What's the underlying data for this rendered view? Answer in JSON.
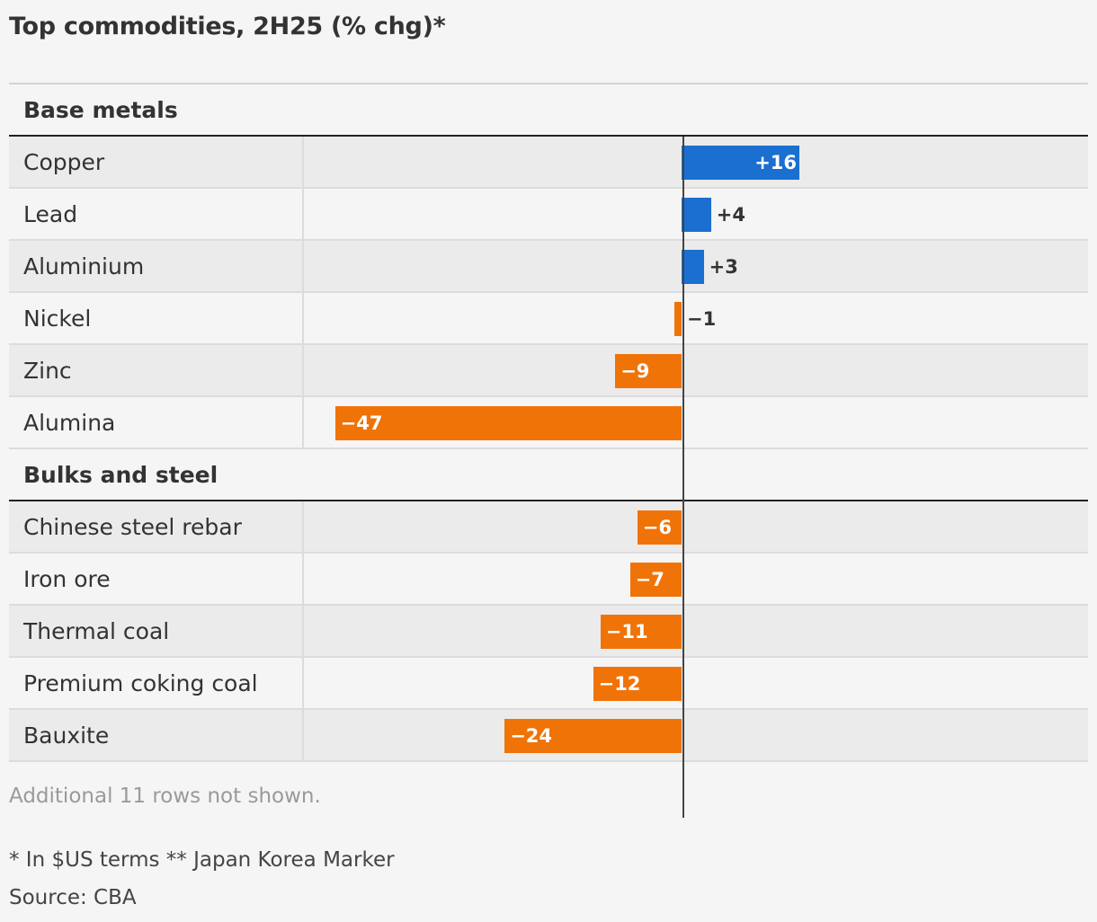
{
  "title": "Top commodities, 2H25 (% chg)*",
  "chart_data": {
    "type": "bar",
    "orientation": "horizontal",
    "title": "Top commodities, 2H25 (% chg)*",
    "xlim": [
      -47,
      47
    ],
    "groups": [
      {
        "name": "Base metals",
        "rows": [
          {
            "label": "Copper",
            "value": 16,
            "display": "+16"
          },
          {
            "label": "Lead",
            "value": 4,
            "display": "+4"
          },
          {
            "label": "Aluminium",
            "value": 3,
            "display": "+3"
          },
          {
            "label": "Nickel",
            "value": -1,
            "display": "−1"
          },
          {
            "label": "Zinc",
            "value": -9,
            "display": "−9"
          },
          {
            "label": "Alumina",
            "value": -47,
            "display": "−47"
          }
        ]
      },
      {
        "name": "Bulks and steel",
        "rows": [
          {
            "label": "Chinese steel rebar",
            "value": -6,
            "display": "−6"
          },
          {
            "label": "Iron ore",
            "value": -7,
            "display": "−7"
          },
          {
            "label": "Thermal coal",
            "value": -11,
            "display": "−11"
          },
          {
            "label": "Premium coking coal",
            "value": -12,
            "display": "−12"
          },
          {
            "label": "Bauxite",
            "value": -24,
            "display": "−24"
          }
        ]
      }
    ],
    "colors": {
      "positive": "#1a6fd0",
      "negative": "#f07308"
    }
  },
  "footer": {
    "rows_note": "Additional 11 rows not shown.",
    "footnote": "* In $US terms ** Japan Korea Marker",
    "source": "Source: CBA"
  }
}
